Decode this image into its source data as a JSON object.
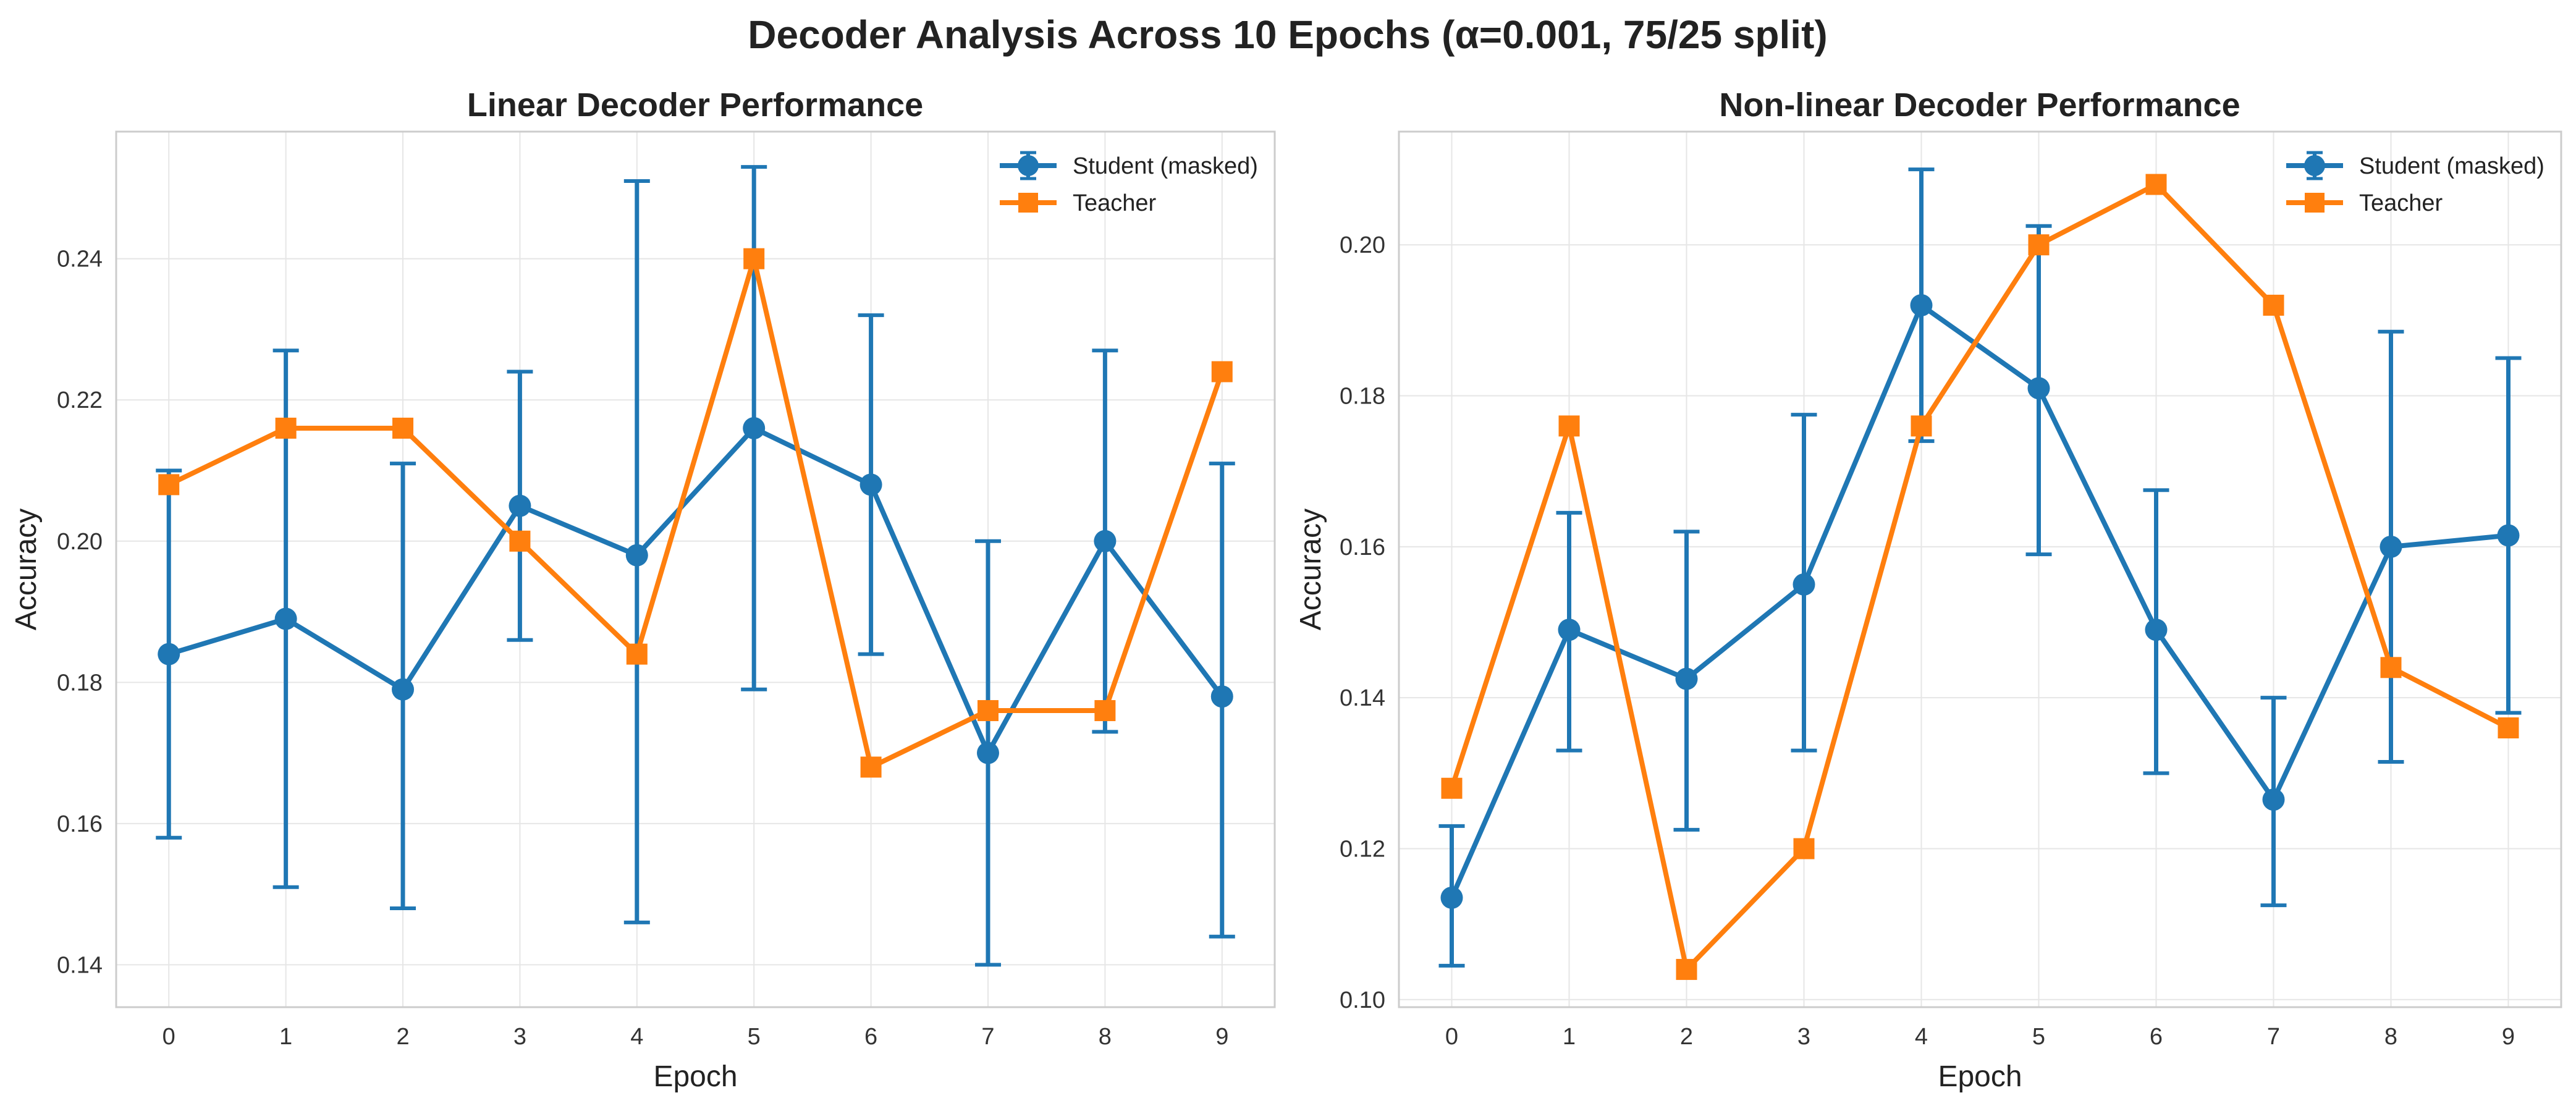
{
  "figure": {
    "title": "Decoder Analysis Across 10 Epochs (α=0.001, 75/25 split)"
  },
  "colors": {
    "student": "#1f77b4",
    "teacher": "#ff7f0e"
  },
  "chart_data": [
    {
      "type": "line",
      "title": "Linear Decoder Performance",
      "xlabel": "Epoch",
      "ylabel": "Accuracy",
      "x": [
        0,
        1,
        2,
        3,
        4,
        5,
        6,
        7,
        8,
        9
      ],
      "xticks": [
        "0",
        "1",
        "2",
        "3",
        "4",
        "5",
        "6",
        "7",
        "8",
        "9"
      ],
      "xlim": [
        -0.45,
        9.45
      ],
      "ylim": [
        0.134,
        0.258
      ],
      "yticks": [
        "0.14",
        "0.16",
        "0.18",
        "0.20",
        "0.22",
        "0.24"
      ],
      "ytick_values": [
        0.14,
        0.16,
        0.18,
        0.2,
        0.22,
        0.24
      ],
      "grid": true,
      "legend_position": "top-right",
      "series": [
        {
          "name": "Student (masked)",
          "marker": "circle",
          "values": [
            0.184,
            0.189,
            0.179,
            0.205,
            0.198,
            0.216,
            0.208,
            0.17,
            0.2,
            0.178
          ],
          "err_low": [
            0.158,
            0.151,
            0.148,
            0.186,
            0.146,
            0.179,
            0.184,
            0.14,
            0.173,
            0.144
          ],
          "err_high": [
            0.21,
            0.227,
            0.211,
            0.224,
            0.251,
            0.253,
            0.232,
            0.2,
            0.227,
            0.211
          ]
        },
        {
          "name": "Teacher",
          "marker": "square",
          "values": [
            0.208,
            0.216,
            0.216,
            0.2,
            0.184,
            0.24,
            0.168,
            0.176,
            0.176,
            0.224
          ]
        }
      ]
    },
    {
      "type": "line",
      "title": "Non-linear Decoder Performance",
      "xlabel": "Epoch",
      "ylabel": "Accuracy",
      "x": [
        0,
        1,
        2,
        3,
        4,
        5,
        6,
        7,
        8,
        9
      ],
      "xticks": [
        "0",
        "1",
        "2",
        "3",
        "4",
        "5",
        "6",
        "7",
        "8",
        "9"
      ],
      "xlim": [
        -0.45,
        9.45
      ],
      "ylim": [
        0.099,
        0.215
      ],
      "yticks": [
        "0.10",
        "0.12",
        "0.14",
        "0.16",
        "0.18",
        "0.20"
      ],
      "ytick_values": [
        0.1,
        0.12,
        0.14,
        0.16,
        0.18,
        0.2
      ],
      "grid": true,
      "legend_position": "top-right",
      "series": [
        {
          "name": "Student (masked)",
          "marker": "circle",
          "values": [
            0.1135,
            0.149,
            0.1425,
            0.155,
            0.192,
            0.181,
            0.149,
            0.1265,
            0.16,
            0.1615
          ],
          "err_low": [
            0.1045,
            0.133,
            0.1225,
            0.133,
            0.174,
            0.159,
            0.13,
            0.1125,
            0.1315,
            0.138
          ],
          "err_high": [
            0.123,
            0.1645,
            0.162,
            0.1775,
            0.21,
            0.2025,
            0.1675,
            0.14,
            0.1885,
            0.185
          ]
        },
        {
          "name": "Teacher",
          "marker": "square",
          "values": [
            0.128,
            0.176,
            0.104,
            0.12,
            0.176,
            0.2,
            0.208,
            0.192,
            0.144,
            0.136
          ]
        }
      ]
    }
  ]
}
